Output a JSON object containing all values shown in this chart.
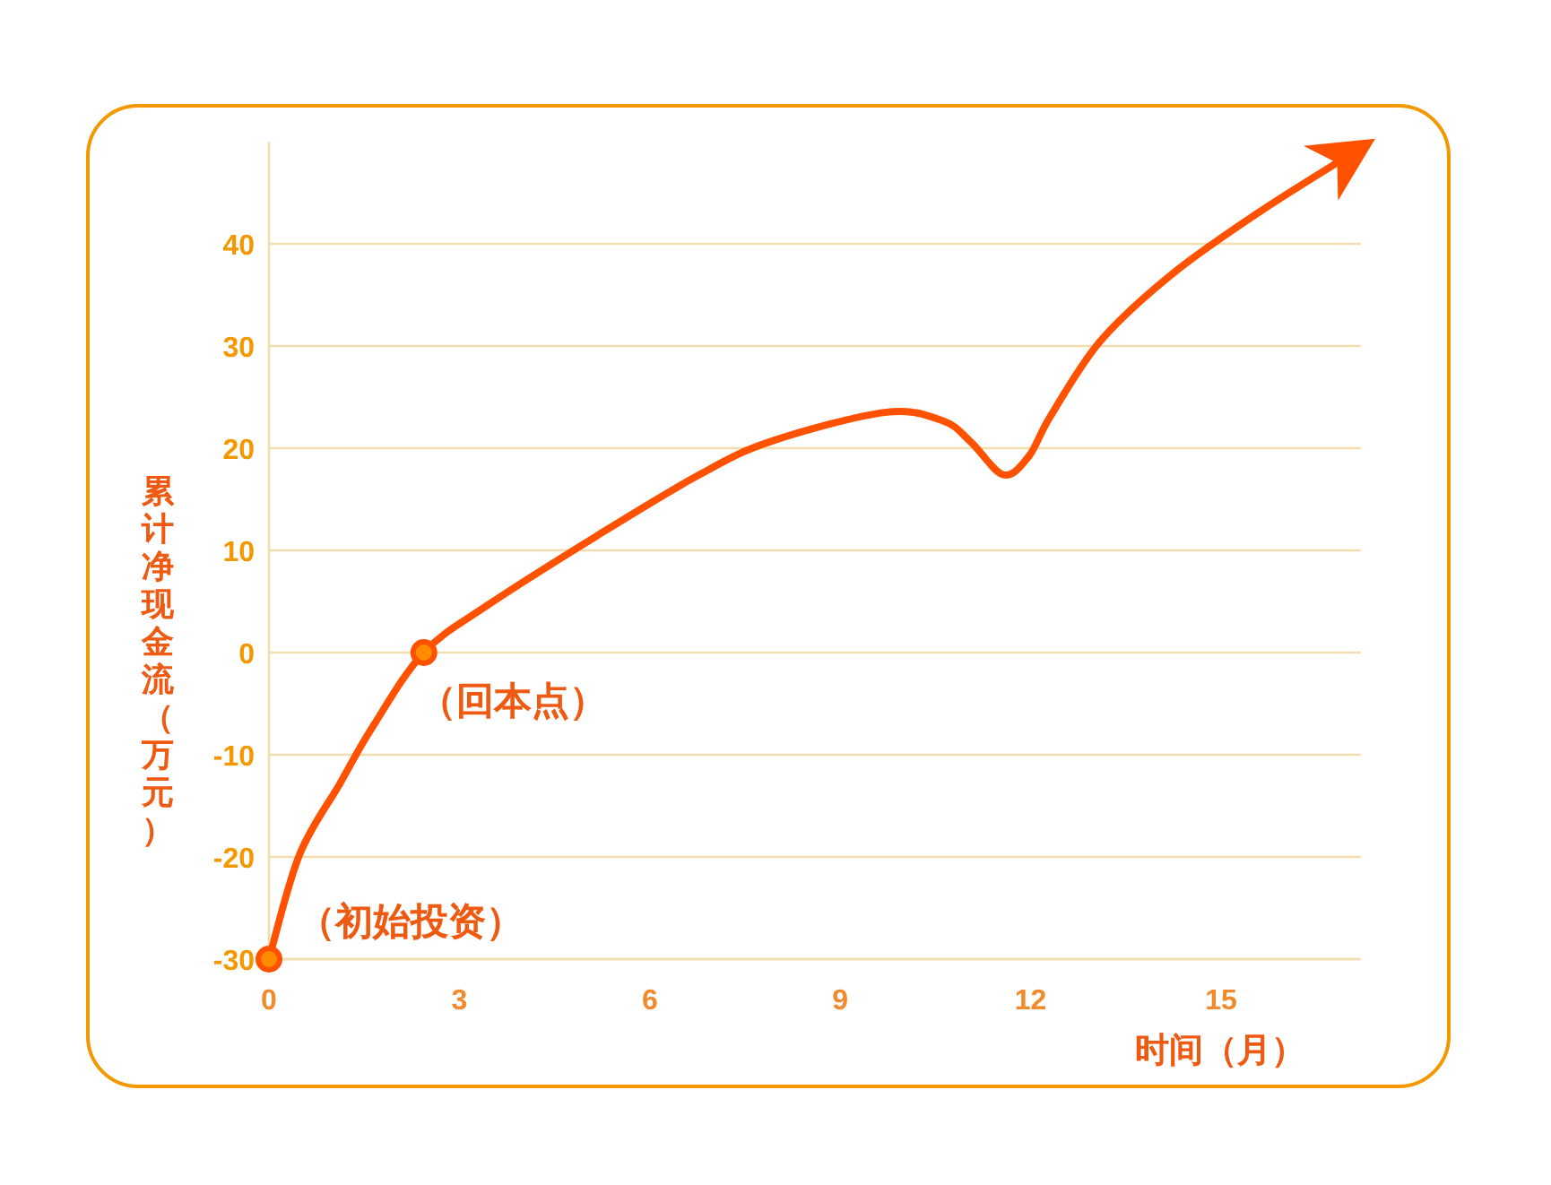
{
  "chart_data": {
    "type": "line",
    "xlabel": "时间（月）",
    "ylabel": "累计净现金流（万元）",
    "xlim": [
      0,
      17.2
    ],
    "ylim": [
      -30,
      50
    ],
    "xticks": [
      0,
      3,
      6,
      9,
      12,
      15
    ],
    "yticks": [
      -30,
      -20,
      -10,
      0,
      10,
      20,
      30,
      40
    ],
    "grid": "y",
    "series": [
      {
        "type": "line",
        "color": "#ff5100",
        "marker": "none",
        "x": [
          0,
          0.48,
          1.12,
          1.62,
          2.44,
          3.46,
          5.16,
          6.75,
          7.88,
          9.7,
          10.61,
          11.06,
          11.57,
          11.97,
          12.31,
          13.1,
          14.24,
          15.6,
          17.0
        ],
        "values": [
          -30,
          -19.8,
          -12.8,
          -7.4,
          0,
          4.7,
          11.4,
          17.3,
          20.6,
          23.5,
          22.7,
          20.6,
          17.4,
          19.2,
          23.1,
          30.5,
          37.1,
          43.1,
          48.6
        ]
      },
      {
        "type": "scatter",
        "color": "#ff8c00",
        "marker": "circle",
        "x": [
          0,
          2.44
        ],
        "values": [
          -30,
          0
        ]
      }
    ],
    "annotations": [
      {
        "text": "（初始投资）",
        "x": 0,
        "y": -30
      },
      {
        "text": "（回本点）",
        "x": 2.44,
        "y": 0
      }
    ]
  }
}
